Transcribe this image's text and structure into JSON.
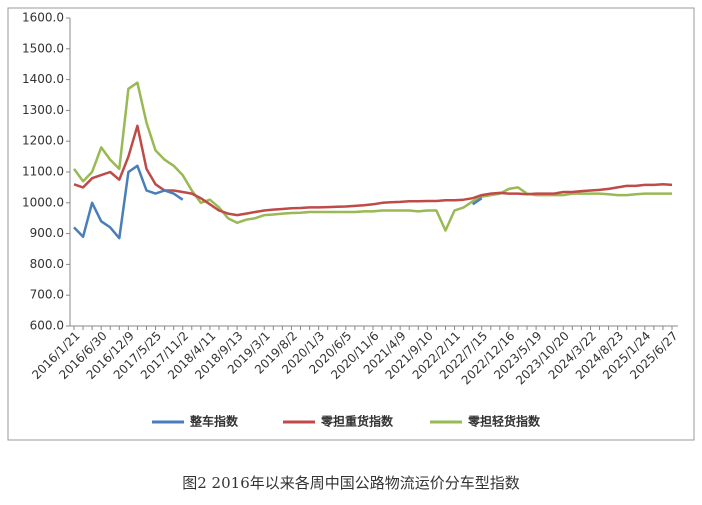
{
  "chart_data": {
    "type": "line",
    "caption": "图2 2016年以来各周中国公路物流运价分车型指数",
    "categories": [
      "2016/1/21",
      null,
      null,
      "2016/6/30",
      null,
      null,
      "2016/12/9",
      null,
      null,
      "2017/5/25",
      null,
      null,
      "2017/11/2",
      null,
      null,
      "2018/4/11",
      null,
      null,
      "2018/9/13",
      null,
      null,
      "2019/3/1",
      null,
      null,
      "2019/8/2",
      null,
      null,
      "2020/1/3",
      null,
      null,
      "2020/6/5",
      null,
      null,
      "2020/11/6",
      null,
      null,
      "2021/4/9",
      null,
      null,
      "2021/9/10",
      null,
      null,
      "2022/2/11",
      null,
      null,
      "2022/7/15",
      null,
      null,
      "2022/12/16",
      null,
      null,
      "2023/5/19",
      null,
      null,
      "2023/10/20",
      null,
      null,
      "2024/3/22",
      null,
      null,
      "2024/8/23",
      null,
      null,
      "2025/1/24",
      null,
      null,
      "2025/6/27"
    ],
    "series": [
      {
        "name": "整车指数",
        "color": "#4a7ebb",
        "values": [
          920,
          890,
          1000,
          940,
          920,
          885,
          1100,
          1120,
          1040,
          1030,
          1040,
          1030,
          1010,
          null,
          null,
          null,
          null,
          null,
          null,
          null,
          null,
          null,
          null,
          null,
          null,
          null,
          null,
          null,
          null,
          null,
          null,
          null,
          null,
          null,
          null,
          null,
          null,
          null,
          null,
          null,
          null,
          null,
          null,
          null,
          995,
          1015,
          null,
          null,
          null,
          null,
          null,
          null,
          null,
          null,
          null,
          null,
          null,
          null,
          null,
          null,
          null,
          null,
          null,
          null,
          null,
          null,
          null
        ]
      },
      {
        "name": "零担重货指数",
        "color": "#be4b48",
        "values": [
          1060,
          1050,
          1080,
          1090,
          1100,
          1075,
          1150,
          1250,
          1110,
          1060,
          1040,
          1040,
          1035,
          1030,
          1015,
          995,
          975,
          965,
          960,
          965,
          970,
          975,
          978,
          980,
          982,
          983,
          985,
          985,
          986,
          987,
          988,
          990,
          992,
          995,
          1000,
          1002,
          1003,
          1005,
          1005,
          1006,
          1006,
          1008,
          1008,
          1010,
          1015,
          1025,
          1030,
          1032,
          1030,
          1030,
          1028,
          1030,
          1030,
          1030,
          1035,
          1035,
          1038,
          1040,
          1042,
          1045,
          1050,
          1055,
          1055,
          1058,
          1058,
          1060,
          1058
        ]
      },
      {
        "name": "零担轻货指数",
        "color": "#98b954",
        "values": [
          1110,
          1070,
          1100,
          1180,
          1140,
          1110,
          1370,
          1390,
          1260,
          1170,
          1140,
          1120,
          1090,
          1040,
          1000,
          1010,
          985,
          950,
          935,
          945,
          950,
          960,
          962,
          965,
          967,
          968,
          970,
          970,
          970,
          970,
          970,
          970,
          972,
          972,
          975,
          975,
          975,
          975,
          972,
          975,
          975,
          910,
          975,
          985,
          1005,
          1020,
          1025,
          1030,
          1045,
          1050,
          1030,
          1025,
          1025,
          1025,
          1025,
          1030,
          1030,
          1030,
          1030,
          1028,
          1025,
          1025,
          1028,
          1030,
          1030,
          1030,
          1030
        ]
      }
    ],
    "ylim": [
      600,
      1600
    ],
    "yticks": [
      {
        "value": 600,
        "label": "600.0"
      },
      {
        "value": 700,
        "label": "700.0"
      },
      {
        "value": 800,
        "label": "800.0"
      },
      {
        "value": 900,
        "label": "900.0"
      },
      {
        "value": 1000,
        "label": "1000.0"
      },
      {
        "value": 1100,
        "label": "1100.0"
      },
      {
        "value": 1200,
        "label": "1200.0"
      },
      {
        "value": 1300,
        "label": "1300.0"
      },
      {
        "value": 1400,
        "label": "1400.0"
      },
      {
        "value": 1500,
        "label": "1500.0"
      },
      {
        "value": 1600,
        "label": "1600.0"
      }
    ]
  }
}
